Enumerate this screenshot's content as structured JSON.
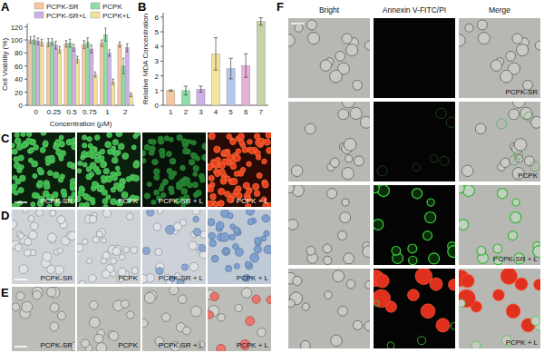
{
  "chart_data": [
    {
      "type": "bar",
      "panel": "A",
      "y_label": "Cell Viability (%)",
      "x_label": "Concentration (μM)",
      "categories": [
        "0",
        "0.25",
        "0.5",
        "0.75",
        "1",
        "2"
      ],
      "series": [
        {
          "name": "PCPK-SR",
          "color": "#f6c8a0",
          "values": [
            100,
            96,
            94,
            93,
            95,
            93
          ],
          "errors": [
            5,
            6,
            5,
            6,
            5,
            4
          ]
        },
        {
          "name": "PCPK",
          "color": "#8fdca6",
          "values": [
            100,
            97,
            95,
            96,
            108,
            60
          ],
          "errors": [
            6,
            5,
            6,
            7,
            10,
            12
          ]
        },
        {
          "name": "PCPK-SR+L",
          "color": "#cdb0e6",
          "values": [
            98,
            92,
            88,
            86,
            80,
            88
          ],
          "errors": [
            5,
            6,
            5,
            6,
            5,
            6
          ]
        },
        {
          "name": "PCPK+L",
          "color": "#f4e39c",
          "values": [
            96,
            85,
            70,
            47,
            36,
            16
          ],
          "errors": [
            5,
            5,
            5,
            4,
            4,
            3
          ]
        }
      ],
      "ylim": [
        0,
        125
      ],
      "yticks": [
        0,
        20,
        40,
        60,
        80,
        100,
        120
      ],
      "legend": "top"
    },
    {
      "type": "bar",
      "panel": "B",
      "y_label": "Relative MDA Concentration",
      "categories": [
        "1",
        "2",
        "3",
        "4",
        "5",
        "6",
        "7"
      ],
      "values": [
        1,
        1,
        1.1,
        3.5,
        2.5,
        2.7,
        5.7
      ],
      "errors": [
        0.05,
        0.3,
        0.2,
        1.1,
        0.7,
        0.8,
        0.25
      ],
      "colors": [
        "#f6c8a0",
        "#8fdca6",
        "#cdb0e6",
        "#f4e39c",
        "#b4c8ec",
        "#e4b2d6",
        "#c5d3a6"
      ],
      "ylim": [
        0,
        6.3
      ],
      "yticks": [
        0,
        1,
        2,
        3,
        4,
        5,
        6
      ]
    }
  ],
  "images": [
    {
      "panel": "C",
      "labels": [
        "PCPK-SR",
        "PCPK",
        "PCPK-SR + L",
        "PCPK + L"
      ]
    },
    {
      "panel": "D",
      "labels": [
        "PCPK-SR",
        "PCPK",
        "PCPK-SR + L",
        "PCPK + L"
      ]
    },
    {
      "panel": "E",
      "labels": [
        "PCPK-SR",
        "PCPK",
        "PCPK-SR + L",
        "PCPK + L"
      ]
    },
    {
      "panel": "F",
      "columns": [
        "Bright",
        "Annexin V-FITC/PI",
        "Merge"
      ],
      "labels": [
        "PCPK-SR",
        "PCPK",
        "PCPK-SR + L",
        "PCPK + L"
      ]
    }
  ]
}
